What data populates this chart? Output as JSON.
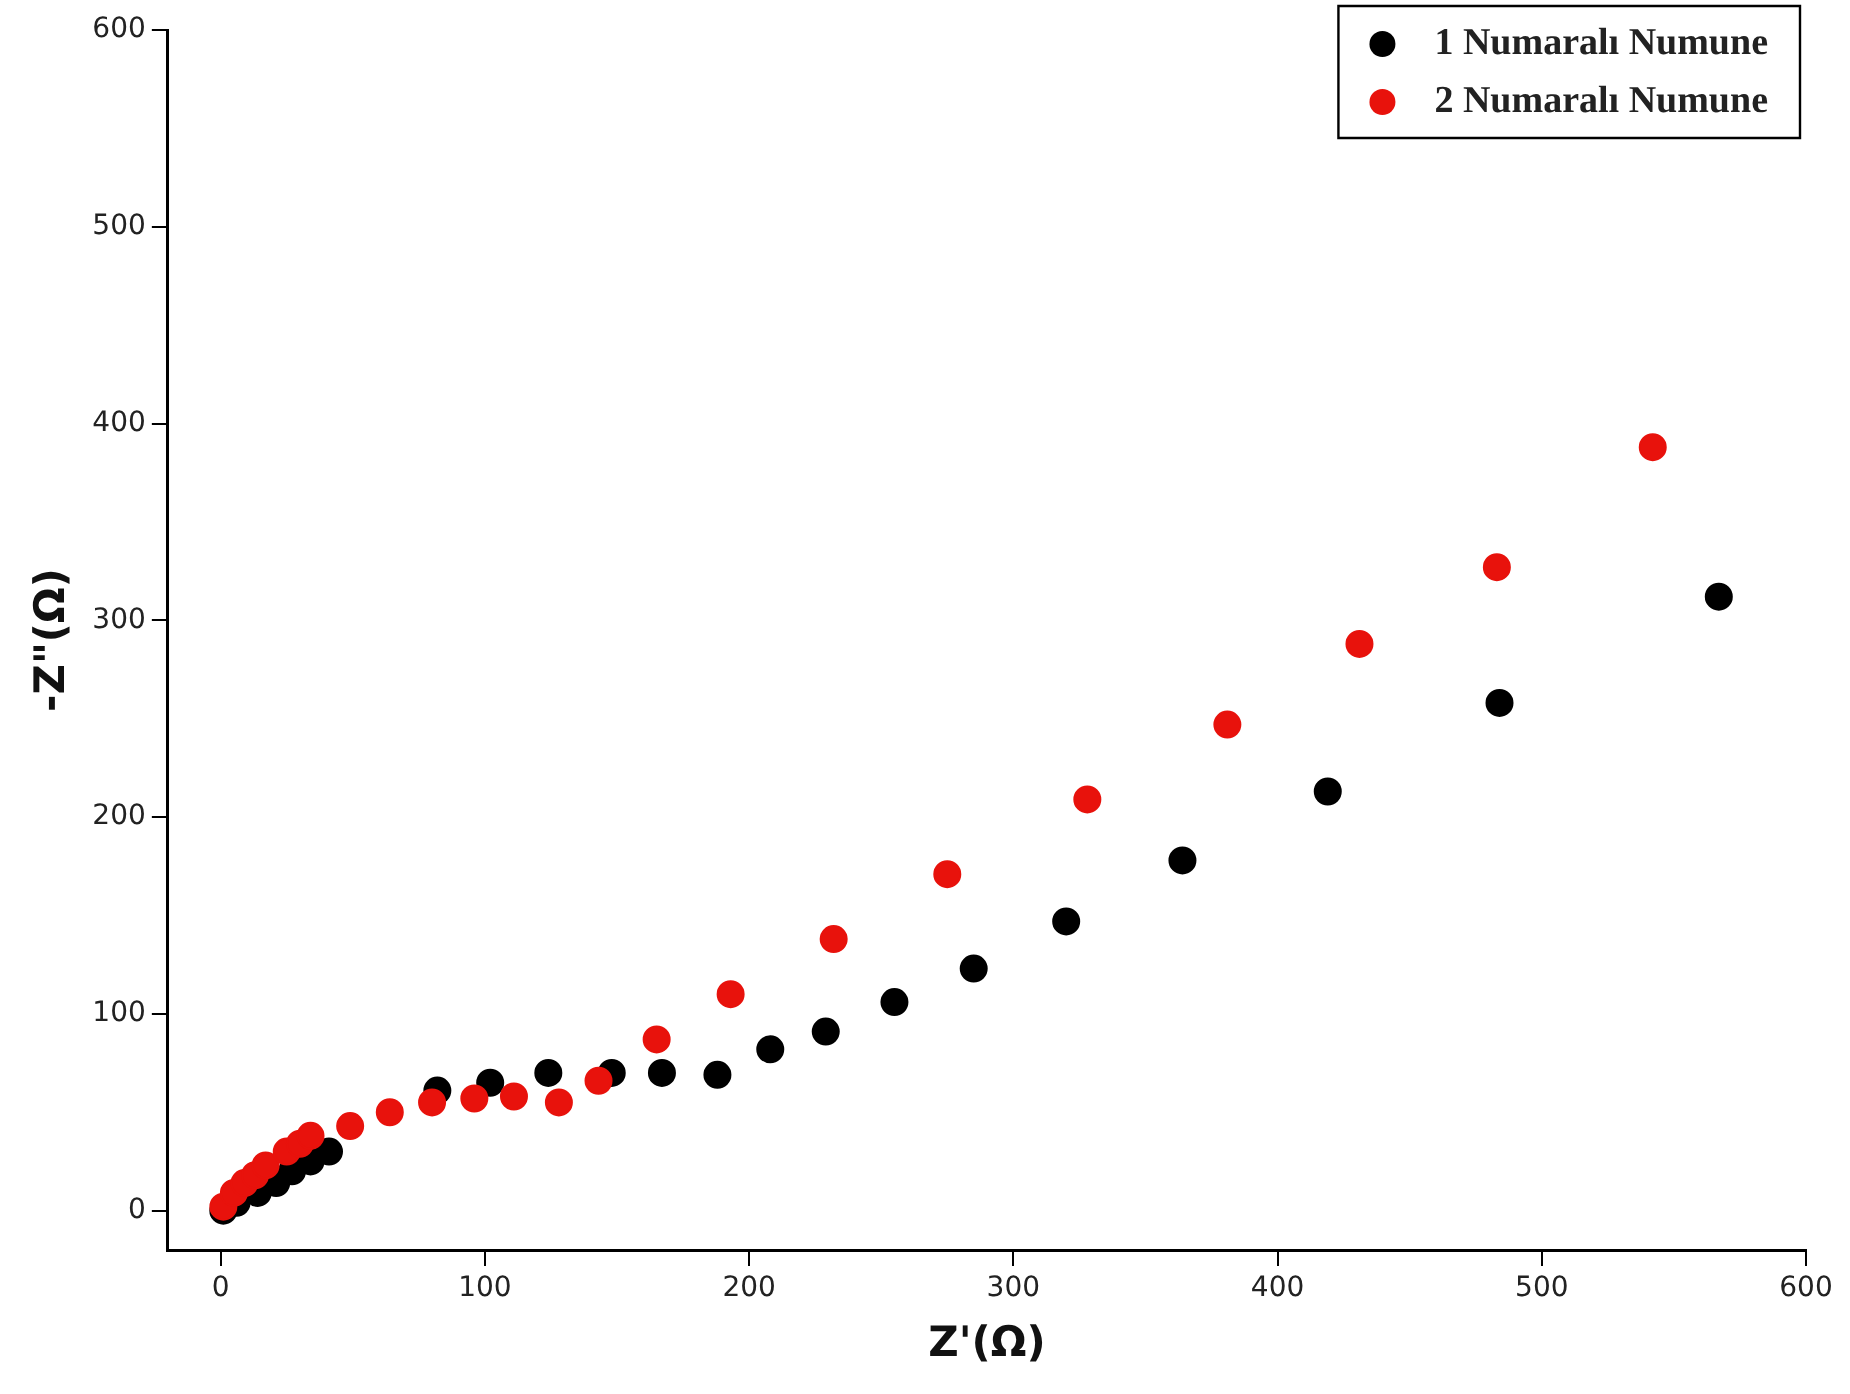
{
  "chart_data": {
    "type": "scatter",
    "xlabel": "Z'(Ω)",
    "ylabel": "-Z\"(Ω)",
    "xlim": [
      -20,
      600
    ],
    "ylim": [
      -20,
      600
    ],
    "xticks": [
      0,
      100,
      200,
      300,
      400,
      500,
      600
    ],
    "yticks": [
      0,
      100,
      200,
      300,
      400,
      500,
      600
    ],
    "grid": false,
    "legend": "top right",
    "marker": "circle",
    "series": [
      {
        "name": "1 Numaralı Numune",
        "color": "#000000",
        "x": [
          1,
          6,
          14,
          21,
          27,
          34,
          41,
          82,
          102,
          124,
          148,
          167,
          188,
          208,
          229,
          255,
          285,
          320,
          364,
          419,
          484,
          567
        ],
        "values": [
          0,
          4,
          9,
          14,
          20,
          25,
          30,
          61,
          65,
          70,
          70,
          70,
          69,
          82,
          91,
          106,
          123,
          147,
          178,
          213,
          258,
          312
        ]
      },
      {
        "name": "2 Numaralı Numune",
        "color": "#e8120c",
        "x": [
          1,
          5,
          9,
          13,
          17,
          25,
          30,
          34,
          49,
          64,
          80,
          96,
          111,
          128,
          143,
          165,
          193,
          232,
          275,
          328,
          381,
          431,
          483,
          542
        ],
        "values": [
          2,
          9,
          14,
          18,
          23,
          30,
          34,
          38,
          43,
          50,
          55,
          57,
          58,
          55,
          66,
          87,
          110,
          138,
          171,
          209,
          247,
          288,
          327,
          388
        ]
      }
    ]
  }
}
